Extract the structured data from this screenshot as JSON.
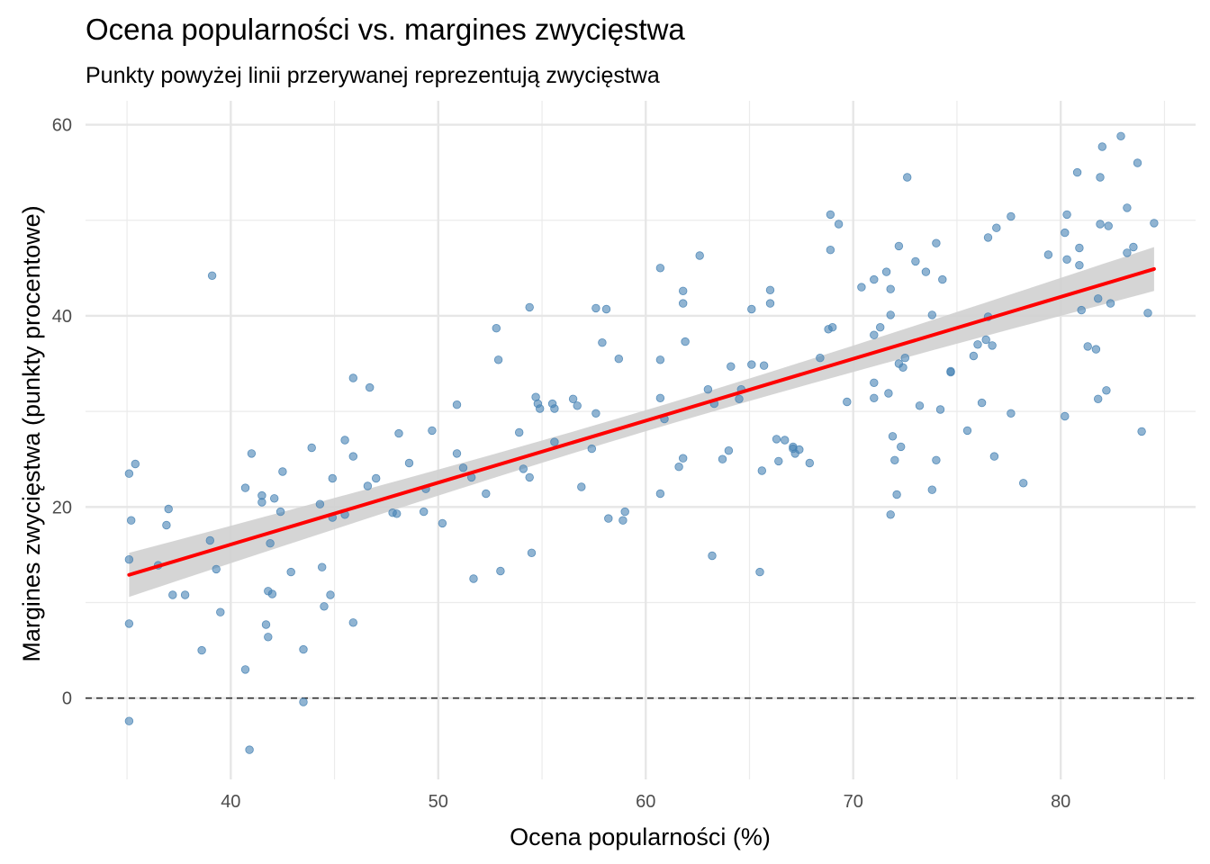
{
  "chart_data": {
    "type": "scatter",
    "title": "Ocena popularności vs. margines zwycięstwa",
    "subtitle": "Punkty powyżej linii przerywanej reprezentują zwycięstwa",
    "xlabel": "Ocena popularności (%)",
    "ylabel": "Margines zwycięstwa (punkty procentowe)",
    "xlim": [
      33.0,
      86.5
    ],
    "ylim": [
      -8.5,
      62.5
    ],
    "x_ticks": [
      40,
      50,
      60,
      70,
      80
    ],
    "y_ticks": [
      0,
      20,
      40,
      60
    ],
    "x_tick_labels": [
      "40",
      "50",
      "60",
      "70",
      "80"
    ],
    "y_tick_labels": [
      "0",
      "20",
      "40",
      "60"
    ],
    "grid": true,
    "reference_line": {
      "y": 0,
      "style": "dashed",
      "color": "#333333"
    },
    "trend": {
      "method": "linear",
      "color": "#ff0000",
      "x_range": [
        35.1,
        84.5
      ],
      "y_start": 12.9,
      "y_end": 44.9,
      "ci_halfwidth_ends": 2.3,
      "ci_halfwidth_mid": 1.1,
      "ci_color": "#d0d0d0"
    },
    "point_color": "#4682b4",
    "points": [
      [
        35.1,
        14.5
      ],
      [
        35.1,
        23.5
      ],
      [
        35.1,
        7.8
      ],
      [
        35.1,
        -2.4
      ],
      [
        35.2,
        18.6
      ],
      [
        35.4,
        24.5
      ],
      [
        36.5,
        13.9
      ],
      [
        36.9,
        18.1
      ],
      [
        37.0,
        19.8
      ],
      [
        37.2,
        10.8
      ],
      [
        37.8,
        10.8
      ],
      [
        38.6,
        5.0
      ],
      [
        39.0,
        16.5
      ],
      [
        39.1,
        44.2
      ],
      [
        39.3,
        13.5
      ],
      [
        39.5,
        9.0
      ],
      [
        40.7,
        3.0
      ],
      [
        40.7,
        22.0
      ],
      [
        40.9,
        -5.4
      ],
      [
        41.0,
        25.6
      ],
      [
        41.5,
        21.2
      ],
      [
        41.5,
        20.5
      ],
      [
        41.7,
        7.7
      ],
      [
        41.8,
        11.2
      ],
      [
        41.8,
        6.4
      ],
      [
        41.9,
        16.2
      ],
      [
        42.0,
        10.9
      ],
      [
        42.1,
        20.9
      ],
      [
        42.4,
        19.5
      ],
      [
        42.5,
        23.7
      ],
      [
        42.9,
        13.2
      ],
      [
        43.5,
        -0.4
      ],
      [
        43.5,
        5.1
      ],
      [
        43.9,
        26.2
      ],
      [
        44.3,
        20.3
      ],
      [
        44.4,
        13.7
      ],
      [
        44.5,
        9.6
      ],
      [
        44.8,
        10.8
      ],
      [
        44.9,
        23.0
      ],
      [
        44.9,
        18.9
      ],
      [
        45.5,
        27.0
      ],
      [
        45.5,
        19.2
      ],
      [
        45.9,
        33.5
      ],
      [
        45.9,
        25.3
      ],
      [
        45.9,
        7.9
      ],
      [
        46.6,
        22.2
      ],
      [
        46.7,
        32.5
      ],
      [
        47.0,
        23.0
      ],
      [
        47.8,
        19.4
      ],
      [
        48.0,
        19.3
      ],
      [
        48.1,
        27.7
      ],
      [
        48.6,
        24.6
      ],
      [
        49.3,
        19.5
      ],
      [
        49.4,
        21.9
      ],
      [
        49.7,
        28.0
      ],
      [
        50.2,
        18.3
      ],
      [
        50.9,
        30.7
      ],
      [
        50.9,
        25.6
      ],
      [
        51.2,
        24.1
      ],
      [
        51.6,
        23.1
      ],
      [
        51.7,
        12.5
      ],
      [
        52.3,
        21.4
      ],
      [
        52.8,
        38.7
      ],
      [
        52.9,
        35.4
      ],
      [
        53.0,
        13.3
      ],
      [
        53.9,
        27.8
      ],
      [
        54.1,
        24.0
      ],
      [
        54.4,
        23.1
      ],
      [
        54.4,
        40.9
      ],
      [
        54.5,
        15.2
      ],
      [
        54.7,
        31.5
      ],
      [
        54.8,
        30.8
      ],
      [
        54.9,
        30.3
      ],
      [
        55.5,
        30.8
      ],
      [
        55.6,
        26.8
      ],
      [
        55.6,
        30.3
      ],
      [
        56.5,
        31.3
      ],
      [
        56.7,
        30.6
      ],
      [
        56.9,
        22.1
      ],
      [
        57.4,
        26.1
      ],
      [
        57.6,
        40.8
      ],
      [
        57.6,
        29.8
      ],
      [
        57.9,
        37.2
      ],
      [
        58.1,
        40.7
      ],
      [
        58.2,
        18.8
      ],
      [
        58.7,
        35.5
      ],
      [
        58.9,
        18.6
      ],
      [
        59.0,
        19.5
      ],
      [
        60.7,
        45.0
      ],
      [
        60.7,
        35.4
      ],
      [
        60.7,
        31.4
      ],
      [
        60.7,
        21.4
      ],
      [
        60.9,
        29.2
      ],
      [
        61.6,
        24.2
      ],
      [
        61.8,
        25.1
      ],
      [
        61.8,
        42.6
      ],
      [
        61.8,
        41.3
      ],
      [
        61.9,
        37.3
      ],
      [
        62.6,
        46.3
      ],
      [
        63.0,
        32.3
      ],
      [
        63.2,
        14.9
      ],
      [
        63.3,
        30.8
      ],
      [
        63.7,
        25.0
      ],
      [
        64.0,
        25.9
      ],
      [
        64.1,
        34.7
      ],
      [
        64.5,
        31.3
      ],
      [
        64.6,
        32.3
      ],
      [
        65.1,
        34.9
      ],
      [
        65.1,
        40.7
      ],
      [
        65.5,
        13.2
      ],
      [
        65.6,
        23.8
      ],
      [
        65.7,
        34.8
      ],
      [
        66.0,
        42.7
      ],
      [
        66.0,
        41.3
      ],
      [
        66.3,
        27.1
      ],
      [
        66.4,
        24.8
      ],
      [
        66.7,
        27.0
      ],
      [
        67.1,
        26.1
      ],
      [
        67.1,
        26.3
      ],
      [
        67.2,
        25.6
      ],
      [
        67.4,
        26.0
      ],
      [
        67.9,
        24.6
      ],
      [
        68.4,
        35.6
      ],
      [
        68.8,
        38.6
      ],
      [
        68.9,
        46.9
      ],
      [
        68.9,
        50.6
      ],
      [
        69.0,
        38.8
      ],
      [
        69.3,
        49.6
      ],
      [
        69.7,
        31.0
      ],
      [
        70.4,
        43.0
      ],
      [
        71.0,
        43.8
      ],
      [
        71.0,
        38.0
      ],
      [
        71.0,
        33.0
      ],
      [
        71.0,
        31.4
      ],
      [
        71.3,
        38.8
      ],
      [
        71.6,
        44.6
      ],
      [
        71.7,
        31.9
      ],
      [
        71.8,
        40.1
      ],
      [
        71.8,
        19.2
      ],
      [
        71.8,
        42.8
      ],
      [
        71.9,
        27.4
      ],
      [
        72.0,
        24.9
      ],
      [
        72.1,
        21.3
      ],
      [
        72.2,
        47.3
      ],
      [
        72.2,
        35.0
      ],
      [
        72.3,
        26.3
      ],
      [
        72.4,
        34.6
      ],
      [
        72.5,
        35.6
      ],
      [
        72.6,
        54.5
      ],
      [
        73.0,
        45.7
      ],
      [
        73.2,
        30.6
      ],
      [
        73.5,
        44.6
      ],
      [
        73.8,
        40.1
      ],
      [
        73.8,
        21.8
      ],
      [
        74.0,
        47.6
      ],
      [
        74.0,
        24.9
      ],
      [
        74.2,
        30.2
      ],
      [
        74.3,
        43.8
      ],
      [
        74.7,
        34.2
      ],
      [
        74.7,
        34.1
      ],
      [
        75.5,
        28.0
      ],
      [
        75.8,
        35.8
      ],
      [
        76.0,
        37.0
      ],
      [
        76.2,
        30.9
      ],
      [
        76.4,
        37.5
      ],
      [
        76.5,
        48.2
      ],
      [
        76.5,
        39.9
      ],
      [
        76.7,
        36.9
      ],
      [
        76.8,
        25.3
      ],
      [
        76.9,
        49.2
      ],
      [
        77.6,
        50.4
      ],
      [
        77.6,
        29.8
      ],
      [
        78.2,
        22.5
      ],
      [
        79.4,
        46.4
      ],
      [
        80.2,
        29.5
      ],
      [
        80.2,
        48.7
      ],
      [
        80.3,
        50.6
      ],
      [
        80.3,
        45.9
      ],
      [
        80.8,
        55.0
      ],
      [
        80.9,
        47.1
      ],
      [
        80.9,
        45.3
      ],
      [
        81.0,
        40.6
      ],
      [
        81.3,
        36.8
      ],
      [
        81.7,
        36.5
      ],
      [
        81.8,
        31.3
      ],
      [
        81.8,
        41.8
      ],
      [
        81.9,
        49.6
      ],
      [
        81.9,
        54.5
      ],
      [
        82.0,
        57.7
      ],
      [
        82.2,
        32.2
      ],
      [
        82.3,
        49.4
      ],
      [
        82.4,
        41.3
      ],
      [
        82.9,
        58.8
      ],
      [
        83.2,
        51.3
      ],
      [
        83.2,
        46.6
      ],
      [
        83.5,
        47.2
      ],
      [
        83.7,
        56.0
      ],
      [
        83.9,
        27.9
      ],
      [
        84.2,
        40.3
      ],
      [
        84.5,
        49.7
      ]
    ]
  }
}
